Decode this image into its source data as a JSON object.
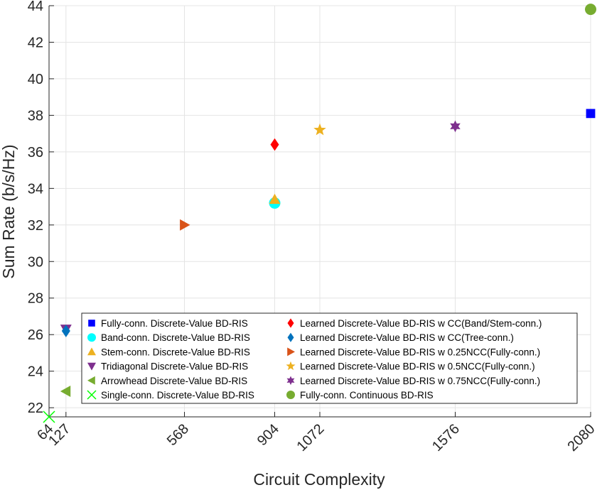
{
  "chart_data": {
    "type": "scatter",
    "xlabel": "Circuit Complexity",
    "ylabel": "Sum Rate (b/s/Hz)",
    "xlim": [
      64,
      2080
    ],
    "ylim": [
      21.5,
      44
    ],
    "xticks": [
      64,
      127,
      568,
      904,
      1072,
      1576,
      2080
    ],
    "yticks": [
      22,
      24,
      26,
      28,
      30,
      32,
      34,
      36,
      38,
      40,
      42,
      44
    ],
    "grid": true,
    "legend_position": "bottom-right",
    "series": [
      {
        "name": "Fully-conn. Discrete-Value BD-RIS",
        "marker": "square",
        "color": "#0000ff",
        "x": [
          2080
        ],
        "y": [
          38.1
        ]
      },
      {
        "name": "Band-conn. Discrete-Value BD-RIS",
        "marker": "circle",
        "color": "#00ffff",
        "x": [
          904
        ],
        "y": [
          33.2
        ]
      },
      {
        "name": "Stem-conn. Discrete-Value BD-RIS",
        "marker": "triangle-up",
        "color": "#edb120",
        "x": [
          904
        ],
        "y": [
          33.4
        ]
      },
      {
        "name": "Tridiagonal Discrete-Value BD-RIS",
        "marker": "triangle-down",
        "color": "#7e2f8e",
        "x": [
          127
        ],
        "y": [
          26.3
        ]
      },
      {
        "name": "Arrowhead Discrete-Value BD-RIS",
        "marker": "triangle-left",
        "color": "#77ac30",
        "x": [
          127
        ],
        "y": [
          22.9
        ]
      },
      {
        "name": "Single-conn. Discrete-Value BD-RIS",
        "marker": "x",
        "color": "#00ff00",
        "x": [
          64
        ],
        "y": [
          21.5
        ]
      },
      {
        "name": "Learned Discrete-Value BD-RIS w CC(Band/Stem-conn.)",
        "marker": "diamond",
        "color": "#ff0000",
        "x": [
          904
        ],
        "y": [
          36.4
        ]
      },
      {
        "name": "Learned Discrete-Value BD-RIS w CC(Tree-conn.)",
        "marker": "diamond",
        "color": "#0072bd",
        "x": [
          127
        ],
        "y": [
          26.2
        ]
      },
      {
        "name": "Learned Discrete-Value BD-RIS w 0.25NCC(Fully-conn.)",
        "marker": "triangle-right",
        "color": "#d95319",
        "x": [
          568
        ],
        "y": [
          32.0
        ]
      },
      {
        "name": "Learned Discrete-Value BD-RIS w 0.5NCC(Fully-conn.)",
        "marker": "star5",
        "color": "#edb120",
        "x": [
          1072
        ],
        "y": [
          37.2
        ]
      },
      {
        "name": "Learned Discrete-Value BD-RIS w 0.75NCC(Fully-conn.)",
        "marker": "star6",
        "color": "#7e2f8e",
        "x": [
          1576
        ],
        "y": [
          37.4
        ]
      },
      {
        "name": "Fully-conn. Continuous BD-RIS",
        "marker": "circle",
        "color": "#77ac30",
        "x": [
          2080
        ],
        "y": [
          43.8
        ]
      }
    ]
  }
}
